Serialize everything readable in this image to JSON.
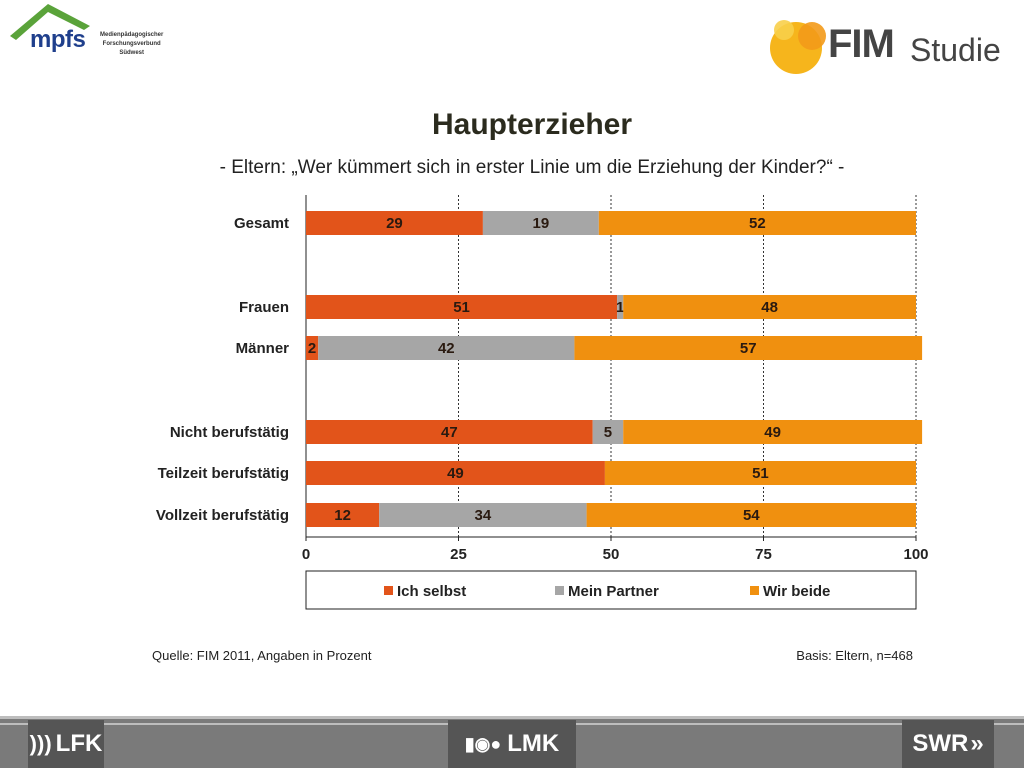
{
  "header": {
    "left_logo": {
      "name": "mpfs",
      "sub_lines": [
        "Medienpädagogischer",
        "Forschungsverbund",
        "Südwest"
      ]
    },
    "right_logo": {
      "fim": "FIM",
      "studie": "Studie"
    }
  },
  "title": "Haupterzieher",
  "subtitle": "- Eltern: „Wer kümmert sich in erster Linie um die Erziehung der Kinder?“ -",
  "source": "Quelle: FIM 2011,  Angaben in Prozent",
  "basis": "Basis: Eltern, n=468",
  "footer": {
    "left": "LFK",
    "center": "LMK",
    "right": "SWR"
  },
  "colors": {
    "ich_selbst": "#E2541A",
    "mein_partner": "#A6A6A6",
    "wir_beide": "#F0900F"
  },
  "chart_data": {
    "type": "bar",
    "orientation": "horizontal",
    "stacked": true,
    "categories": [
      "Gesamt",
      "Frauen",
      "Männer",
      "Nicht berufstätig",
      "Teilzeit berufstätig",
      "Vollzeit berufstätig"
    ],
    "groups": [
      [
        0
      ],
      [
        1,
        2
      ],
      [
        3,
        4,
        5
      ]
    ],
    "series": [
      {
        "name": "Ich selbst",
        "values": [
          29,
          51,
          2,
          47,
          49,
          12
        ],
        "labels": [
          "29",
          "51",
          "2",
          "47",
          "49",
          "12"
        ],
        "color": "#E2541A"
      },
      {
        "name": "Mein Partner",
        "values": [
          19,
          1,
          42,
          5,
          0,
          34
        ],
        "labels": [
          "19",
          "1",
          "42",
          "5",
          "",
          "34"
        ],
        "color": "#A6A6A6"
      },
      {
        "name": "Wir beide",
        "values": [
          52,
          48,
          57,
          49,
          51,
          54
        ],
        "labels": [
          "52",
          "48",
          "57",
          "49",
          "51",
          "54"
        ],
        "color": "#F0900F"
      }
    ],
    "xlim": [
      0,
      100
    ],
    "xticks": [
      0,
      25,
      50,
      75,
      100
    ],
    "grid": true,
    "legend": "bottom"
  }
}
